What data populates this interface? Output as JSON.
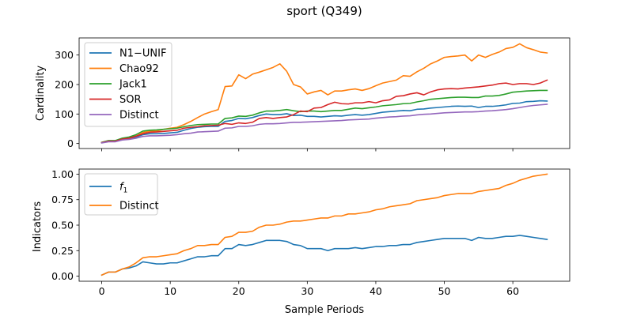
{
  "chart_data": {
    "title": "sport (Q349)",
    "xlabel": "Sample Periods",
    "x_ticks": [
      0,
      10,
      20,
      30,
      40,
      50,
      60
    ],
    "xlim": [
      -3.3,
      68.3
    ],
    "panels": [
      {
        "type": "line",
        "ylabel": "Cardinality",
        "ylim": [
          -17,
          358
        ],
        "y_ticks": [
          0,
          100,
          200,
          300
        ],
        "legend_position": "upper-left",
        "series": [
          {
            "name": "N1−UNIF",
            "color": "#1f77b4",
            "x": [
              0,
              1,
              2,
              3,
              4,
              5,
              6,
              7,
              8,
              9,
              10,
              11,
              12,
              13,
              14,
              15,
              16,
              17,
              18,
              19,
              20,
              21,
              22,
              23,
              24,
              25,
              26,
              27,
              28,
              29,
              30,
              31,
              32,
              33,
              34,
              35,
              36,
              37,
              38,
              39,
              40,
              41,
              42,
              43,
              44,
              45,
              46,
              47,
              48,
              49,
              50,
              51,
              52,
              53,
              54,
              55,
              56,
              57,
              58,
              59,
              60,
              61,
              62,
              63,
              64,
              65
            ],
            "values": [
              3,
              8,
              8,
              14,
              15,
              22,
              30,
              33,
              33,
              34,
              36,
              38,
              45,
              51,
              55,
              57,
              58,
              58,
              75,
              78,
              85,
              84,
              88,
              95,
              100,
              98,
              98,
              101,
              95,
              96,
              92,
              92,
              90,
              92,
              94,
              93,
              96,
              98,
              96,
              98,
              102,
              106,
              108,
              110,
              112,
              111,
              116,
              117,
              120,
              122,
              124,
              126,
              127,
              126,
              127,
              122,
              126,
              126,
              128,
              131,
              136,
              137,
              142,
              143,
              145,
              144
            ]
          },
          {
            "name": "Chao92",
            "color": "#ff7f0e",
            "x": [
              0,
              1,
              2,
              3,
              4,
              5,
              6,
              7,
              8,
              9,
              10,
              11,
              12,
              13,
              14,
              15,
              16,
              17,
              18,
              19,
              20,
              21,
              22,
              23,
              24,
              25,
              26,
              27,
              28,
              29,
              30,
              31,
              32,
              33,
              34,
              35,
              36,
              37,
              38,
              39,
              40,
              41,
              42,
              43,
              44,
              45,
              46,
              47,
              48,
              49,
              50,
              51,
              52,
              53,
              54,
              55,
              56,
              57,
              58,
              59,
              60,
              61,
              62,
              63,
              64,
              65
            ],
            "values": [
              3,
              8,
              8,
              15,
              18,
              25,
              37,
              42,
              42,
              48,
              52,
              55,
              64,
              75,
              88,
              100,
              108,
              115,
              193,
              195,
              233,
              220,
              235,
              242,
              250,
              258,
              270,
              245,
              200,
              192,
              168,
              175,
              180,
              165,
              178,
              178,
              182,
              185,
              180,
              186,
              196,
              205,
              210,
              215,
              230,
              228,
              243,
              255,
              270,
              280,
              292,
              295,
              297,
              300,
              280,
              300,
              292,
              302,
              310,
              322,
              326,
              338,
              325,
              318,
              310,
              307
            ]
          },
          {
            "name": "Jack1",
            "color": "#2ca02c",
            "x": [
              0,
              1,
              2,
              3,
              4,
              5,
              6,
              7,
              8,
              9,
              10,
              11,
              12,
              13,
              14,
              15,
              16,
              17,
              18,
              19,
              20,
              21,
              22,
              23,
              24,
              25,
              26,
              27,
              28,
              29,
              30,
              31,
              32,
              33,
              34,
              35,
              36,
              37,
              38,
              39,
              40,
              41,
              42,
              43,
              44,
              45,
              46,
              47,
              48,
              49,
              50,
              51,
              52,
              53,
              54,
              55,
              56,
              57,
              58,
              59,
              60,
              61,
              62,
              63,
              64,
              65
            ],
            "values": [
              4,
              10,
              10,
              18,
              22,
              30,
              42,
              45,
              46,
              48,
              50,
              52,
              57,
              61,
              64,
              65,
              66,
              66,
              85,
              87,
              93,
              92,
              96,
              104,
              110,
              110,
              112,
              115,
              111,
              108,
              110,
              110,
              108,
              110,
              112,
              112,
              116,
              120,
              118,
              121,
              124,
              128,
              130,
              132,
              135,
              136,
              141,
              145,
              150,
              152,
              154,
              156,
              157,
              157,
              156,
              156,
              161,
              161,
              163,
              168,
              174,
              176,
              178,
              179,
              180,
              180
            ]
          },
          {
            "name": "SOR",
            "color": "#d62728",
            "x": [
              0,
              1,
              2,
              3,
              4,
              5,
              6,
              7,
              8,
              9,
              10,
              11,
              12,
              13,
              14,
              15,
              16,
              17,
              18,
              19,
              20,
              21,
              22,
              23,
              24,
              25,
              26,
              27,
              28,
              29,
              30,
              31,
              32,
              33,
              34,
              35,
              36,
              37,
              38,
              39,
              40,
              41,
              42,
              43,
              44,
              45,
              46,
              47,
              48,
              49,
              50,
              51,
              52,
              53,
              54,
              55,
              56,
              57,
              58,
              59,
              60,
              61,
              62,
              63,
              64,
              65
            ],
            "values": [
              3,
              8,
              8,
              15,
              18,
              25,
              33,
              38,
              39,
              41,
              43,
              45,
              52,
              55,
              57,
              60,
              61,
              62,
              68,
              65,
              70,
              68,
              72,
              85,
              88,
              85,
              88,
              90,
              98,
              110,
              108,
              120,
              122,
              132,
              140,
              135,
              134,
              138,
              138,
              142,
              138,
              145,
              148,
              160,
              162,
              168,
              172,
              165,
              175,
              182,
              185,
              186,
              185,
              188,
              190,
              192,
              195,
              198,
              203,
              205,
              200,
              203,
              203,
              200,
              205,
              215
            ]
          },
          {
            "name": "Distinct",
            "color": "#9467bd",
            "x": [
              0,
              1,
              2,
              3,
              4,
              5,
              6,
              7,
              8,
              9,
              10,
              11,
              12,
              13,
              14,
              15,
              16,
              17,
              18,
              19,
              20,
              21,
              22,
              23,
              24,
              25,
              26,
              27,
              28,
              29,
              30,
              31,
              32,
              33,
              34,
              35,
              36,
              37,
              38,
              39,
              40,
              41,
              42,
              43,
              44,
              45,
              46,
              47,
              48,
              49,
              50,
              51,
              52,
              53,
              54,
              55,
              56,
              57,
              58,
              59,
              60,
              61,
              62,
              63,
              64,
              65
            ],
            "values": [
              2,
              6,
              6,
              12,
              14,
              18,
              24,
              26,
              26,
              27,
              28,
              30,
              33,
              35,
              39,
              40,
              41,
              42,
              52,
              53,
              58,
              58,
              60,
              65,
              67,
              67,
              68,
              70,
              72,
              72,
              73,
              74,
              75,
              76,
              77,
              78,
              80,
              81,
              82,
              83,
              86,
              88,
              90,
              91,
              93,
              94,
              97,
              99,
              100,
              102,
              104,
              105,
              106,
              107,
              107,
              108,
              110,
              111,
              113,
              115,
              118,
              122,
              126,
              129,
              131,
              133
            ]
          }
        ]
      },
      {
        "type": "line",
        "ylabel": "Indicators",
        "ylim": [
          -0.05,
          1.05
        ],
        "y_ticks": [
          "0.00",
          "0.25",
          "0.50",
          "0.75",
          "1.00"
        ],
        "legend_position": "upper-left",
        "series": [
          {
            "name": "f1",
            "color": "#1f77b4",
            "x": [
              0,
              1,
              2,
              3,
              4,
              5,
              6,
              7,
              8,
              9,
              10,
              11,
              12,
              13,
              14,
              15,
              16,
              17,
              18,
              19,
              20,
              21,
              22,
              23,
              24,
              25,
              26,
              27,
              28,
              29,
              30,
              31,
              32,
              33,
              34,
              35,
              36,
              37,
              38,
              39,
              40,
              41,
              42,
              43,
              44,
              45,
              46,
              47,
              48,
              49,
              50,
              51,
              52,
              53,
              54,
              55,
              56,
              57,
              58,
              59,
              60,
              61,
              62,
              63,
              64,
              65
            ],
            "values": [
              0.01,
              0.04,
              0.04,
              0.07,
              0.08,
              0.1,
              0.14,
              0.13,
              0.12,
              0.12,
              0.13,
              0.13,
              0.15,
              0.17,
              0.19,
              0.19,
              0.2,
              0.2,
              0.27,
              0.27,
              0.31,
              0.3,
              0.31,
              0.33,
              0.35,
              0.35,
              0.35,
              0.34,
              0.31,
              0.3,
              0.27,
              0.27,
              0.27,
              0.25,
              0.27,
              0.27,
              0.27,
              0.28,
              0.27,
              0.28,
              0.29,
              0.29,
              0.3,
              0.3,
              0.31,
              0.31,
              0.33,
              0.34,
              0.35,
              0.36,
              0.37,
              0.37,
              0.37,
              0.37,
              0.35,
              0.38,
              0.37,
              0.37,
              0.38,
              0.39,
              0.39,
              0.4,
              0.39,
              0.38,
              0.37,
              0.36
            ]
          },
          {
            "name": "Distinct",
            "color": "#ff7f0e",
            "x": [
              0,
              1,
              2,
              3,
              4,
              5,
              6,
              7,
              8,
              9,
              10,
              11,
              12,
              13,
              14,
              15,
              16,
              17,
              18,
              19,
              20,
              21,
              22,
              23,
              24,
              25,
              26,
              27,
              28,
              29,
              30,
              31,
              32,
              33,
              34,
              35,
              36,
              37,
              38,
              39,
              40,
              41,
              42,
              43,
              44,
              45,
              46,
              47,
              48,
              49,
              50,
              51,
              52,
              53,
              54,
              55,
              56,
              57,
              58,
              59,
              60,
              61,
              62,
              63,
              64,
              65
            ],
            "values": [
              0.01,
              0.04,
              0.04,
              0.07,
              0.09,
              0.13,
              0.18,
              0.19,
              0.19,
              0.2,
              0.21,
              0.22,
              0.25,
              0.27,
              0.3,
              0.3,
              0.31,
              0.31,
              0.38,
              0.39,
              0.43,
              0.43,
              0.44,
              0.48,
              0.5,
              0.5,
              0.51,
              0.53,
              0.54,
              0.54,
              0.55,
              0.56,
              0.57,
              0.57,
              0.59,
              0.59,
              0.61,
              0.61,
              0.62,
              0.63,
              0.65,
              0.66,
              0.68,
              0.69,
              0.7,
              0.71,
              0.74,
              0.75,
              0.76,
              0.77,
              0.79,
              0.8,
              0.81,
              0.81,
              0.81,
              0.83,
              0.84,
              0.85,
              0.86,
              0.89,
              0.91,
              0.94,
              0.96,
              0.98,
              0.99,
              1.0
            ]
          }
        ]
      }
    ]
  }
}
